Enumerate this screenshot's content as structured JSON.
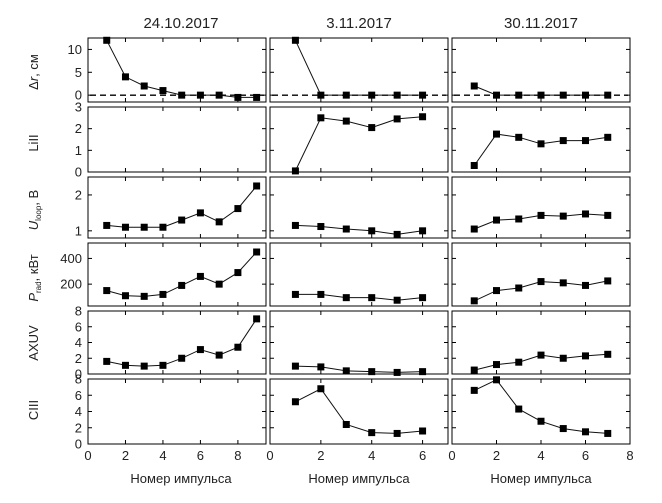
{
  "chart_data": {
    "type": "scatter",
    "columns": [
      {
        "title": "24.10.2017",
        "xlim": [
          0,
          9.5
        ],
        "xticks": [
          0,
          2,
          4,
          6,
          8
        ],
        "xtick_labels": [
          "0",
          "2",
          "4",
          "6",
          "8"
        ]
      },
      {
        "title": "3.11.2017",
        "xlim": [
          0,
          7
        ],
        "xticks": [
          0,
          2,
          4,
          6
        ],
        "xtick_labels": [
          "0",
          "2",
          "4",
          "6"
        ]
      },
      {
        "title": "30.11.2017",
        "xlim": [
          0,
          8
        ],
        "xticks": [
          0,
          2,
          4,
          6,
          8
        ],
        "xtick_labels": [
          "0",
          "2",
          "4",
          "6",
          "8"
        ]
      }
    ],
    "xlabel": "Номер импульса",
    "rows": [
      {
        "ylabel": "Δr, см",
        "ylim": [
          -1.5,
          12.5
        ],
        "yticks": [
          0,
          5,
          10
        ],
        "ytick_labels": [
          "0",
          "5",
          "10"
        ],
        "reference_line": 0
      },
      {
        "ylabel": "LiII",
        "ylim": [
          0,
          3
        ],
        "yticks": [
          0,
          1,
          2,
          3
        ],
        "ytick_labels": [
          "0",
          "1",
          "2",
          "3"
        ]
      },
      {
        "ylabel": "U_loop, В",
        "ylim": [
          0.8,
          2.5
        ],
        "yticks": [
          1,
          2
        ],
        "ytick_labels": [
          "1",
          "2"
        ]
      },
      {
        "ylabel": "P_rad, кВт",
        "ylim": [
          30,
          520
        ],
        "yticks": [
          200,
          400
        ],
        "ytick_labels": [
          "200",
          "400"
        ]
      },
      {
        "ylabel": "AXUV",
        "ylim": [
          0,
          8
        ],
        "yticks": [
          0,
          2,
          4,
          6,
          8
        ],
        "ytick_labels": [
          "0",
          "2",
          "4",
          "6",
          "8"
        ]
      },
      {
        "ylabel": "CIII",
        "ylim": [
          0,
          8
        ],
        "yticks": [
          0,
          2,
          4,
          6,
          8
        ],
        "ytick_labels": [
          "0",
          "2",
          "4",
          "6",
          "8"
        ]
      }
    ],
    "panels": [
      [
        {
          "x": [
            1,
            2,
            3,
            4,
            5,
            6,
            7,
            8,
            9
          ],
          "y": [
            12,
            4,
            2,
            1,
            0,
            0,
            0,
            -0.5,
            -0.5
          ]
        },
        {
          "x": [],
          "y": []
        },
        {
          "x": [
            1,
            2,
            3,
            4,
            5,
            6,
            7,
            8,
            9
          ],
          "y": [
            1.15,
            1.1,
            1.1,
            1.1,
            1.3,
            1.5,
            1.25,
            1.62,
            2.25
          ]
        },
        {
          "x": [
            1,
            2,
            3,
            4,
            5,
            6,
            7,
            8,
            9
          ],
          "y": [
            150,
            110,
            105,
            120,
            190,
            260,
            200,
            290,
            450
          ]
        },
        {
          "x": [
            1,
            2,
            3,
            4,
            5,
            6,
            7,
            8,
            9
          ],
          "y": [
            1.6,
            1.1,
            1.0,
            1.1,
            2.0,
            3.1,
            2.4,
            3.4,
            7.0
          ]
        },
        {
          "x": [],
          "y": []
        }
      ],
      [
        {
          "x": [
            1,
            2,
            3,
            4,
            5,
            6
          ],
          "y": [
            12,
            0,
            0,
            0,
            0,
            0
          ]
        },
        {
          "x": [
            1,
            2,
            3,
            4,
            5,
            6
          ],
          "y": [
            0.05,
            2.5,
            2.35,
            2.05,
            2.45,
            2.55
          ]
        },
        {
          "x": [
            1,
            2,
            3,
            4,
            5,
            6
          ],
          "y": [
            1.15,
            1.12,
            1.05,
            1.0,
            0.9,
            1.0
          ]
        },
        {
          "x": [
            1,
            2,
            3,
            4,
            5,
            6
          ],
          "y": [
            120,
            120,
            95,
            95,
            75,
            95
          ]
        },
        {
          "x": [
            1,
            2,
            3,
            4,
            5,
            6
          ],
          "y": [
            1.0,
            0.9,
            0.4,
            0.3,
            0.2,
            0.3
          ]
        },
        {
          "x": [
            1,
            2,
            3,
            4,
            5,
            6
          ],
          "y": [
            5.2,
            6.8,
            2.4,
            1.4,
            1.3,
            1.6
          ]
        }
      ],
      [
        {
          "x": [
            1,
            2,
            3,
            4,
            5,
            6,
            7
          ],
          "y": [
            2,
            0,
            0,
            0,
            0,
            0,
            0
          ]
        },
        {
          "x": [
            1,
            2,
            3,
            4,
            5,
            6,
            7
          ],
          "y": [
            0.3,
            1.75,
            1.6,
            1.3,
            1.45,
            1.45,
            1.6
          ]
        },
        {
          "x": [
            1,
            2,
            3,
            4,
            5,
            6,
            7
          ],
          "y": [
            1.05,
            1.3,
            1.33,
            1.43,
            1.41,
            1.47,
            1.43
          ]
        },
        {
          "x": [
            1,
            2,
            3,
            4,
            5,
            6,
            7
          ],
          "y": [
            70,
            150,
            170,
            220,
            210,
            190,
            225
          ]
        },
        {
          "x": [
            1,
            2,
            3,
            4,
            5,
            6,
            7
          ],
          "y": [
            0.5,
            1.2,
            1.5,
            2.4,
            2.0,
            2.3,
            2.5
          ]
        },
        {
          "x": [
            1,
            2,
            3,
            4,
            5,
            6,
            7
          ],
          "y": [
            6.6,
            7.9,
            4.3,
            2.8,
            1.9,
            1.5,
            1.3
          ]
        }
      ]
    ]
  }
}
